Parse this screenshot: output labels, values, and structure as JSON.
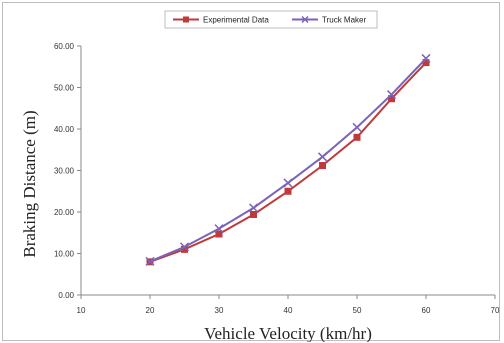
{
  "chart_data": {
    "type": "line",
    "xlabel": "Vehicle Velocity (km/hr)",
    "ylabel": "Braking Distance (m)",
    "xlim": [
      10,
      70
    ],
    "ylim": [
      0,
      60
    ],
    "x_ticks": [
      "10",
      "20",
      "30",
      "40",
      "50",
      "60",
      "70"
    ],
    "y_ticks": [
      "0.00",
      "10.00",
      "20.00",
      "30.00",
      "40.00",
      "50.00",
      "60.00"
    ],
    "grid": false,
    "legend": "top-center",
    "series": [
      {
        "name": "Experimental Data",
        "color": "#c0393b",
        "marker": "square",
        "x": [
          20,
          25,
          30,
          35,
          40,
          45,
          50,
          55,
          60
        ],
        "y": [
          8.0,
          11.0,
          14.7,
          19.4,
          25.0,
          31.2,
          38.0,
          47.3,
          56.0
        ]
      },
      {
        "name": "Truck Maker",
        "color": "#7a63b8",
        "marker": "x",
        "x": [
          20,
          25,
          30,
          35,
          40,
          45,
          50,
          55,
          60
        ],
        "y": [
          8.1,
          11.6,
          16.0,
          21.0,
          27.0,
          33.3,
          40.4,
          48.3,
          57.0
        ]
      }
    ]
  }
}
